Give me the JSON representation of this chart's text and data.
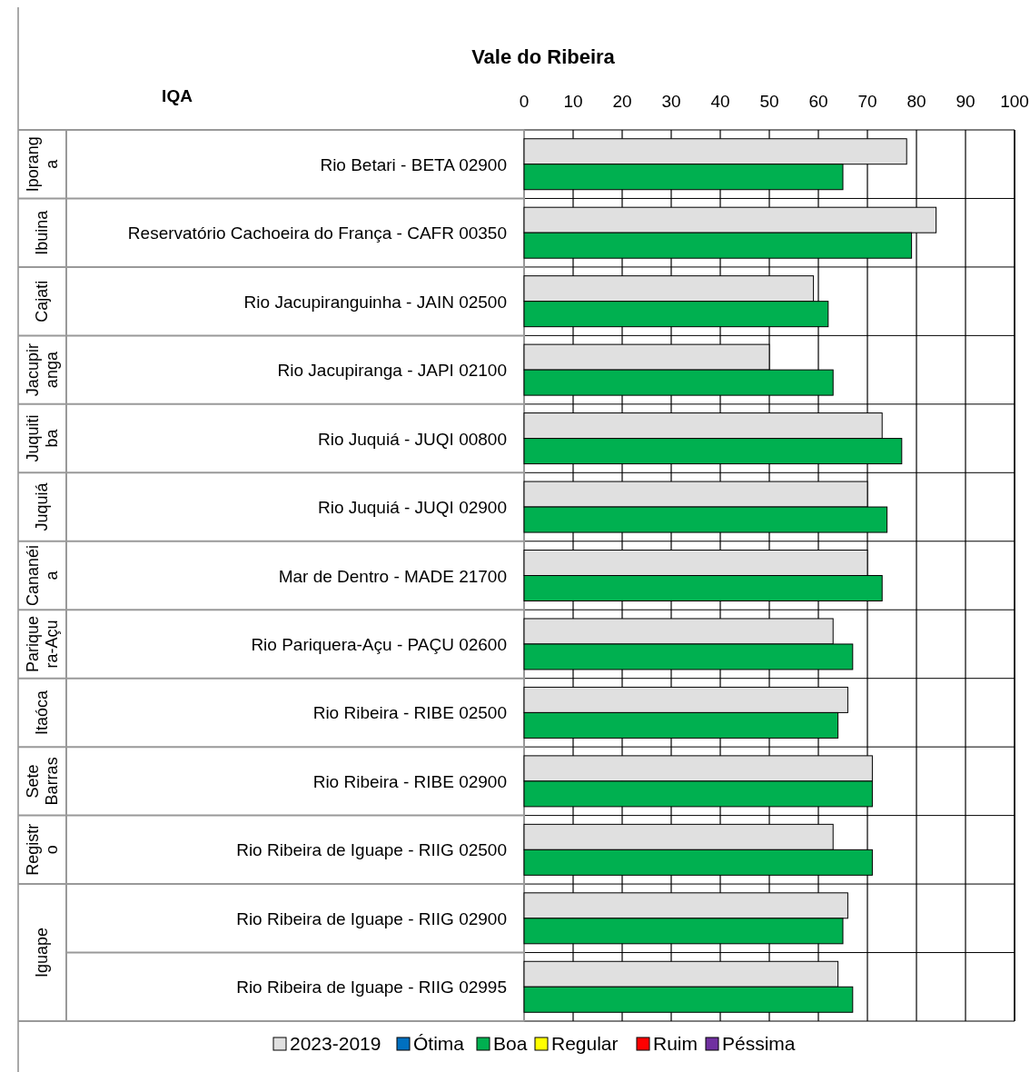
{
  "chart_data": {
    "type": "bar",
    "orientation": "horizontal",
    "title": "Vale do Ribeira",
    "ylabel": "IQA",
    "categories": [
      "Rio Betari - BETA 02900",
      "Reservatório Cachoeira do França - CAFR 00350",
      "Rio Jacupiranguinha - JAIN 02500",
      "Rio Jacupiranga - JAPI 02100",
      "Rio Juquiá - JUQI 00800",
      "Rio Juquiá - JUQI 02900",
      "Mar de Dentro - MADE 21700",
      "Rio Pariquera-Açu - PAÇU 02600",
      "Rio Ribeira - RIBE 02500",
      "Rio Ribeira - RIBE 02900",
      "Rio Ribeira de Iguape - RIIG 02500",
      "Rio Ribeira de Iguape - RIIG 02900",
      "Rio Ribeira de Iguape - RIIG 02995"
    ],
    "series": [
      {
        "name": "2023-2019",
        "color": "#e0e0e0",
        "values": [
          78,
          84,
          59,
          50,
          73,
          70,
          70,
          63,
          66,
          71,
          63,
          66,
          64
        ]
      },
      {
        "name": "Ótima",
        "color": "#0070c0",
        "values": [
          null,
          null,
          null,
          null,
          null,
          null,
          null,
          null,
          null,
          null,
          null,
          null,
          null
        ]
      },
      {
        "name": "Boa",
        "color": "#00b050",
        "values": [
          65,
          79,
          62,
          63,
          77,
          74,
          73,
          67,
          64,
          71,
          71,
          65,
          67
        ]
      },
      {
        "name": "Regular",
        "color": "#ffff00",
        "values": [
          null,
          null,
          null,
          null,
          null,
          null,
          null,
          null,
          null,
          null,
          null,
          null,
          null
        ]
      },
      {
        "name": "Ruim",
        "color": "#ff0000",
        "values": [
          null,
          null,
          null,
          null,
          null,
          null,
          null,
          null,
          null,
          null,
          null,
          null,
          null
        ]
      },
      {
        "name": "Péssima",
        "color": "#7030a0",
        "values": [
          null,
          null,
          null,
          null,
          null,
          null,
          null,
          null,
          null,
          null,
          null,
          null,
          null
        ]
      }
    ],
    "annotations": [
      "Iporanga",
      "Ibuina",
      "Cajati",
      "Jacupiranga",
      "Juquitiba",
      "Juquiá",
      "Cananéia",
      "Pariquera-Açu",
      "Itaóca",
      "Sete Barras",
      "Registro",
      "Iguape"
    ],
    "xlim": [
      0,
      100
    ],
    "xticks": [
      0,
      10,
      20,
      30,
      40,
      50,
      60,
      70,
      80,
      90,
      100
    ],
    "grid": "x",
    "legend": "bottom"
  }
}
